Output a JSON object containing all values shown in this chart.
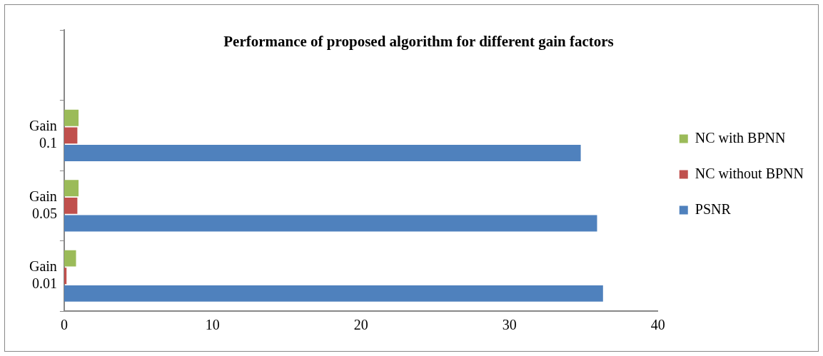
{
  "chart_data": {
    "type": "bar",
    "orientation": "horizontal",
    "title": "Performance of proposed algorithm for different gain factors",
    "categories": [
      null,
      "Gain 0.1",
      "Gain 0.05",
      "Gain 0.01"
    ],
    "series": [
      {
        "name": "NC with BPNN",
        "color": "#9bbb59",
        "values": [
          null,
          0.97,
          0.97,
          0.8
        ]
      },
      {
        "name": "NC without BPNN",
        "color": "#c0504d",
        "values": [
          null,
          0.89,
          0.89,
          0.16
        ]
      },
      {
        "name": "PSNR",
        "color": "#4f81bd",
        "values": [
          null,
          34.8,
          35.9,
          36.3
        ]
      }
    ],
    "xlim": [
      0,
      40
    ],
    "xticks": [
      0,
      10,
      20,
      30,
      40
    ],
    "grid": false,
    "legend": "right"
  }
}
